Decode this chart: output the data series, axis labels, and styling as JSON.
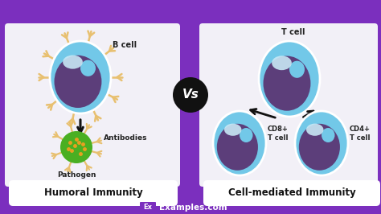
{
  "background_color": "#7B2FBE",
  "panel_bg": "#F2F0F7",
  "title_left": "Humoral Immunity",
  "title_right": "Cell-mediated Immunity",
  "vs_text": "Vs",
  "b_cell_label": "B cell",
  "antibodies_label": "Antibodies",
  "pathogen_label": "Pathogen",
  "t_cell_label": "T cell",
  "cd8_label": "CD8+\nT cell",
  "cd4_label": "CD4+\nT cell",
  "cell_outer_color": "#72C8E8",
  "cell_nucleus_color": "#5C3E7A",
  "cell_highlight_color": "#C8E8F5",
  "pathogen_color": "#4AAF22",
  "pathogen_dot_color": "#E8A020",
  "antibody_color": "#E8C070",
  "arrow_color": "#111111",
  "vs_bg": "#111111",
  "vs_text_color": "#FFFFFF",
  "logo_bg": "#7B2FBE",
  "logo_text_color": "#FFFFFF",
  "site_text": "Examples.com",
  "site_color": "#FFFFFF"
}
